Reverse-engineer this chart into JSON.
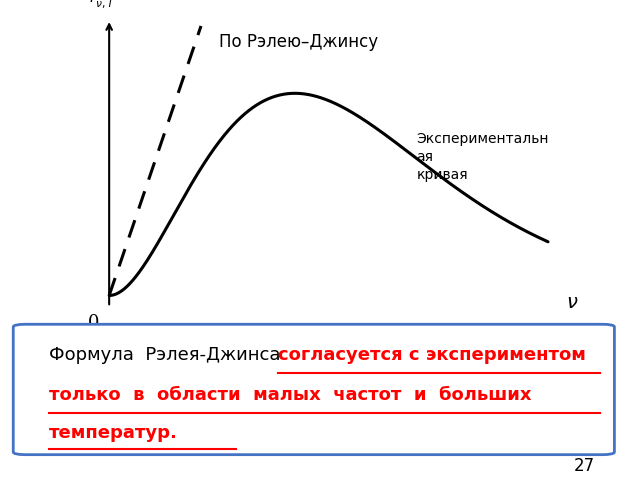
{
  "title_rayleigh": "По Рэлею–Джинсу",
  "label_experimental": "Экспериментальн\nая\nкривая",
  "zero_label": "0",
  "page_number": "27",
  "bg_color": "#ffffff",
  "curve_color": "#000000",
  "box_border_color": "#4472c4",
  "text_red_color": "#ff0000",
  "text_black_color": "#000000",
  "text_black_part": "Формула  Рэлея-Джинса  ",
  "text_red_line1": "согласуется с экспериментом",
  "text_red_line2": "только  в  области  малых  частот  и  больших",
  "text_red_line3": "температур."
}
